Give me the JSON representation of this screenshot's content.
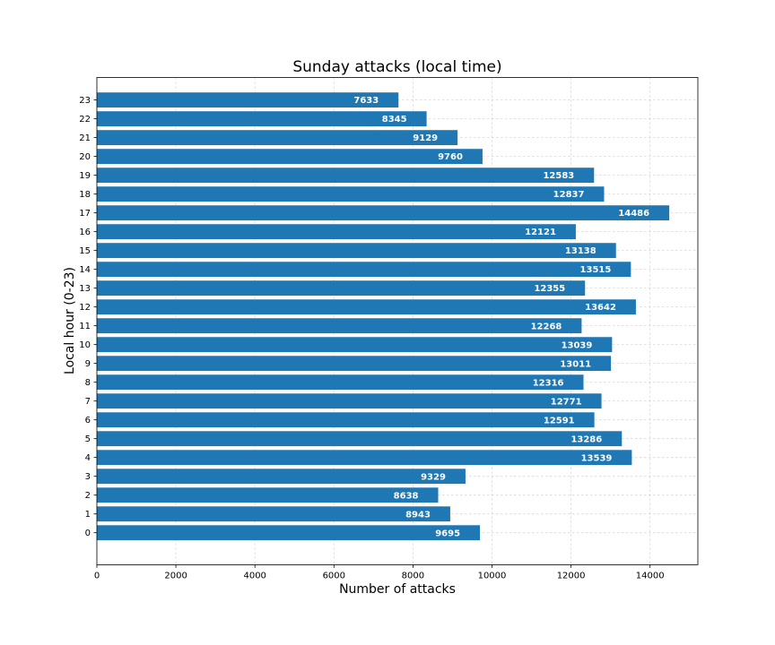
{
  "chart_data": {
    "type": "bar",
    "orientation": "horizontal",
    "title": "Sunday attacks (local time)",
    "xlabel": "Number of attacks",
    "ylabel": "Local hour (0-23)",
    "categories": [
      "0",
      "1",
      "2",
      "3",
      "4",
      "5",
      "6",
      "7",
      "8",
      "9",
      "10",
      "11",
      "12",
      "13",
      "14",
      "15",
      "16",
      "17",
      "18",
      "19",
      "20",
      "21",
      "22",
      "23"
    ],
    "values": [
      9695,
      8943,
      8638,
      9329,
      13539,
      13286,
      12591,
      12771,
      12316,
      13011,
      13039,
      12268,
      13642,
      12355,
      13515,
      13138,
      12121,
      14486,
      12837,
      12583,
      9760,
      9129,
      8345,
      7633
    ],
    "xlim": [
      0,
      15210
    ],
    "xticks": [
      "0",
      "2000",
      "4000",
      "6000",
      "8000",
      "10000",
      "12000",
      "14000"
    ],
    "grid": true,
    "bar_color": "#1f77b4",
    "label_color": "#ffffff"
  }
}
